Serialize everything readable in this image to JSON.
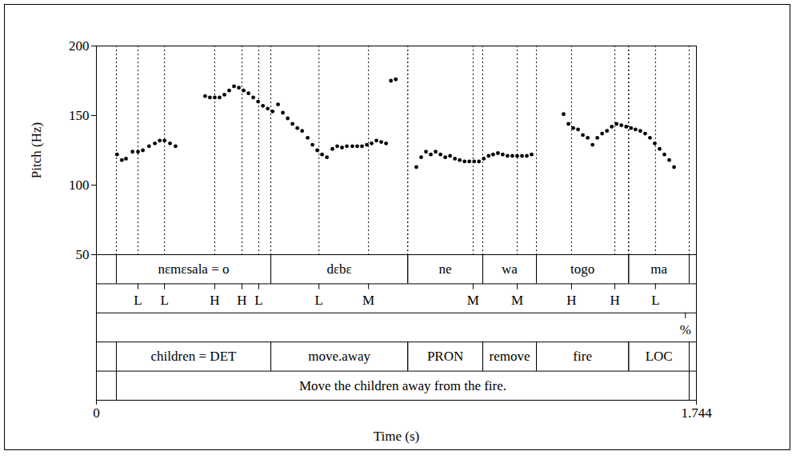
{
  "chart_data": {
    "type": "scatter",
    "x_label": "Time (s)",
    "y_label": "Pitch (Hz)",
    "color": "#000000",
    "marker": "circle",
    "xlim": [
      0,
      1.744
    ],
    "xticks": [
      0,
      1.744
    ],
    "ylim": [
      50,
      200
    ],
    "yticks": [
      50,
      100,
      150,
      200
    ],
    "x": [
      0.06,
      0.074,
      0.086,
      0.105,
      0.121,
      0.135,
      0.153,
      0.17,
      0.184,
      0.198,
      0.214,
      0.23,
      0.316,
      0.33,
      0.344,
      0.358,
      0.372,
      0.386,
      0.4,
      0.414,
      0.428,
      0.442,
      0.456,
      0.47,
      0.484,
      0.498,
      0.512,
      0.528,
      0.542,
      0.556,
      0.57,
      0.584,
      0.598,
      0.614,
      0.628,
      0.642,
      0.656,
      0.67,
      0.686,
      0.7,
      0.714,
      0.728,
      0.744,
      0.758,
      0.772,
      0.786,
      0.8,
      0.814,
      0.828,
      0.842,
      0.856,
      0.87,
      0.93,
      0.944,
      0.958,
      0.972,
      0.986,
      1.0,
      1.014,
      1.028,
      1.042,
      1.056,
      1.07,
      1.084,
      1.098,
      1.112,
      1.126,
      1.14,
      1.153,
      1.167,
      1.181,
      1.195,
      1.209,
      1.223,
      1.237,
      1.251,
      1.265,
      1.358,
      1.372,
      1.386,
      1.4,
      1.414,
      1.428,
      1.442,
      1.456,
      1.47,
      1.484,
      1.498,
      1.512,
      1.526,
      1.54,
      1.554,
      1.567,
      1.581,
      1.595,
      1.609,
      1.623,
      1.637,
      1.651,
      1.665,
      1.679
    ],
    "values": [
      122,
      118,
      119,
      124,
      124,
      125,
      128,
      130,
      132,
      132,
      130,
      128,
      164,
      163,
      163,
      163,
      165,
      168,
      171,
      170,
      168,
      166,
      163,
      160,
      157,
      155,
      153,
      158,
      152,
      148,
      144,
      141,
      139,
      134,
      129,
      125,
      122,
      120,
      126,
      128,
      127,
      128,
      128,
      128,
      128,
      129,
      130,
      132,
      131,
      130,
      175,
      176,
      113,
      120,
      124,
      122,
      124,
      122,
      120,
      121,
      119,
      118,
      117,
      117,
      117,
      117,
      119,
      121,
      122,
      123,
      122,
      121,
      121,
      121,
      121,
      121,
      122,
      151,
      144,
      141,
      140,
      136,
      134,
      129,
      134,
      137,
      139,
      142,
      144,
      143,
      142,
      141,
      140,
      139,
      137,
      134,
      130,
      126,
      122,
      118,
      113
    ],
    "tiers": [
      {
        "kind": "interval",
        "intervals": [
          {
            "start": 0.058,
            "end": 0.507,
            "text": "nɛmɛsala = o"
          },
          {
            "start": 0.507,
            "end": 0.905,
            "text": "dɛbɛ"
          },
          {
            "start": 0.905,
            "end": 1.123,
            "text": "ne"
          },
          {
            "start": 1.123,
            "end": 1.279,
            "text": "wa"
          },
          {
            "start": 1.279,
            "end": 1.547,
            "text": "togo"
          },
          {
            "start": 1.547,
            "end": 1.723,
            "text": "ma"
          }
        ]
      },
      {
        "kind": "point",
        "points": [
          {
            "time": 0.121,
            "text": "L"
          },
          {
            "time": 0.198,
            "text": "L"
          },
          {
            "time": 0.344,
            "text": "H"
          },
          {
            "time": 0.423,
            "text": "H"
          },
          {
            "time": 0.472,
            "text": "L"
          },
          {
            "time": 0.647,
            "text": "L"
          },
          {
            "time": 0.791,
            "text": "M"
          },
          {
            "time": 1.095,
            "text": "M"
          },
          {
            "time": 1.223,
            "text": "M"
          },
          {
            "time": 1.381,
            "text": "H"
          },
          {
            "time": 1.507,
            "text": "H"
          },
          {
            "time": 1.625,
            "text": "L"
          }
        ]
      },
      {
        "kind": "point",
        "points": [
          {
            "time": 1.712,
            "text": "%"
          }
        ]
      },
      {
        "kind": "interval",
        "intervals": [
          {
            "start": 0.058,
            "end": 0.507,
            "text": "children = DET"
          },
          {
            "start": 0.507,
            "end": 0.905,
            "text": "move.away"
          },
          {
            "start": 0.905,
            "end": 1.123,
            "text": "PRON"
          },
          {
            "start": 1.123,
            "end": 1.279,
            "text": "remove"
          },
          {
            "start": 1.279,
            "end": 1.547,
            "text": "fire"
          },
          {
            "start": 1.547,
            "end": 1.723,
            "text": "LOC"
          }
        ]
      },
      {
        "kind": "interval",
        "intervals": [
          {
            "start": 0.058,
            "end": 1.723,
            "text": "Move the children away from the fire."
          }
        ]
      }
    ]
  }
}
